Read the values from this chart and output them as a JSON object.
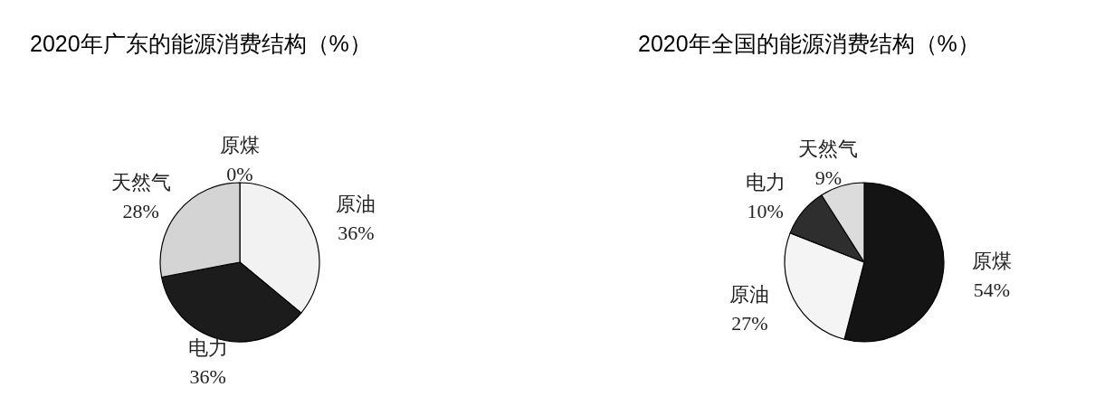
{
  "chart_data": [
    {
      "type": "pie",
      "title": "2020年广东的能源消费结构（%）",
      "categories": [
        "原煤",
        "原油",
        "电力",
        "天然气"
      ],
      "values": [
        0,
        36,
        36,
        28
      ],
      "value_labels": [
        "0%",
        "36%",
        "36%",
        "28%"
      ],
      "colors": [
        "#000000",
        "#f2f2f2",
        "#1c1c1c",
        "#d4d4d4"
      ]
    },
    {
      "type": "pie",
      "title": "2020年全国的能源消费结构（%）",
      "categories": [
        "原煤",
        "原油",
        "电力",
        "天然气"
      ],
      "values": [
        54,
        27,
        10,
        9
      ],
      "value_labels": [
        "54%",
        "27%",
        "10%",
        "9%"
      ],
      "colors": [
        "#141414",
        "#f4f4f4",
        "#2e2e2e",
        "#dcdcdc"
      ]
    }
  ]
}
